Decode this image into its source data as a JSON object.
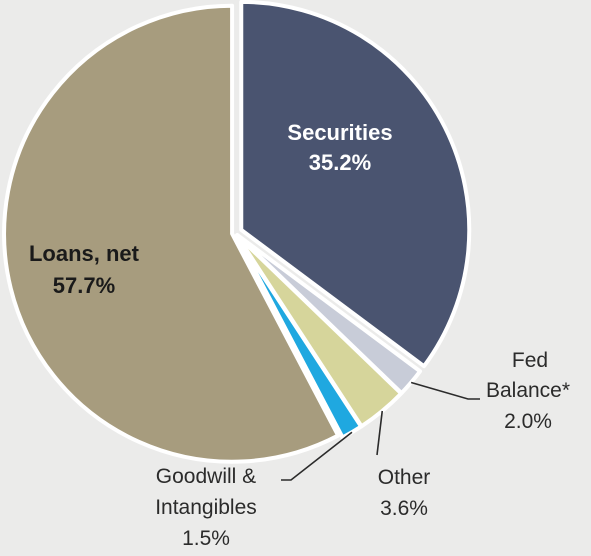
{
  "chart_data": {
    "type": "pie",
    "title": "",
    "slices": [
      {
        "label_lines": [
          "Securities"
        ],
        "value_text": "35.2%",
        "value": 35.2,
        "color": "#4a5470"
      },
      {
        "label_lines": [
          "Fed",
          "Balance*"
        ],
        "value_text": "2.0%",
        "value": 2.0,
        "color": "#c8ccd8"
      },
      {
        "label_lines": [
          "Other"
        ],
        "value_text": "3.6%",
        "value": 3.6,
        "color": "#d6d59b"
      },
      {
        "label_lines": [
          "Goodwill &",
          "Intangibles"
        ],
        "value_text": "1.5%",
        "value": 1.5,
        "color": "#1fa8e0"
      },
      {
        "label_lines": [
          "Loans, net"
        ],
        "value_text": "57.7%",
        "value": 57.7,
        "color": "#a79c7e"
      }
    ]
  }
}
